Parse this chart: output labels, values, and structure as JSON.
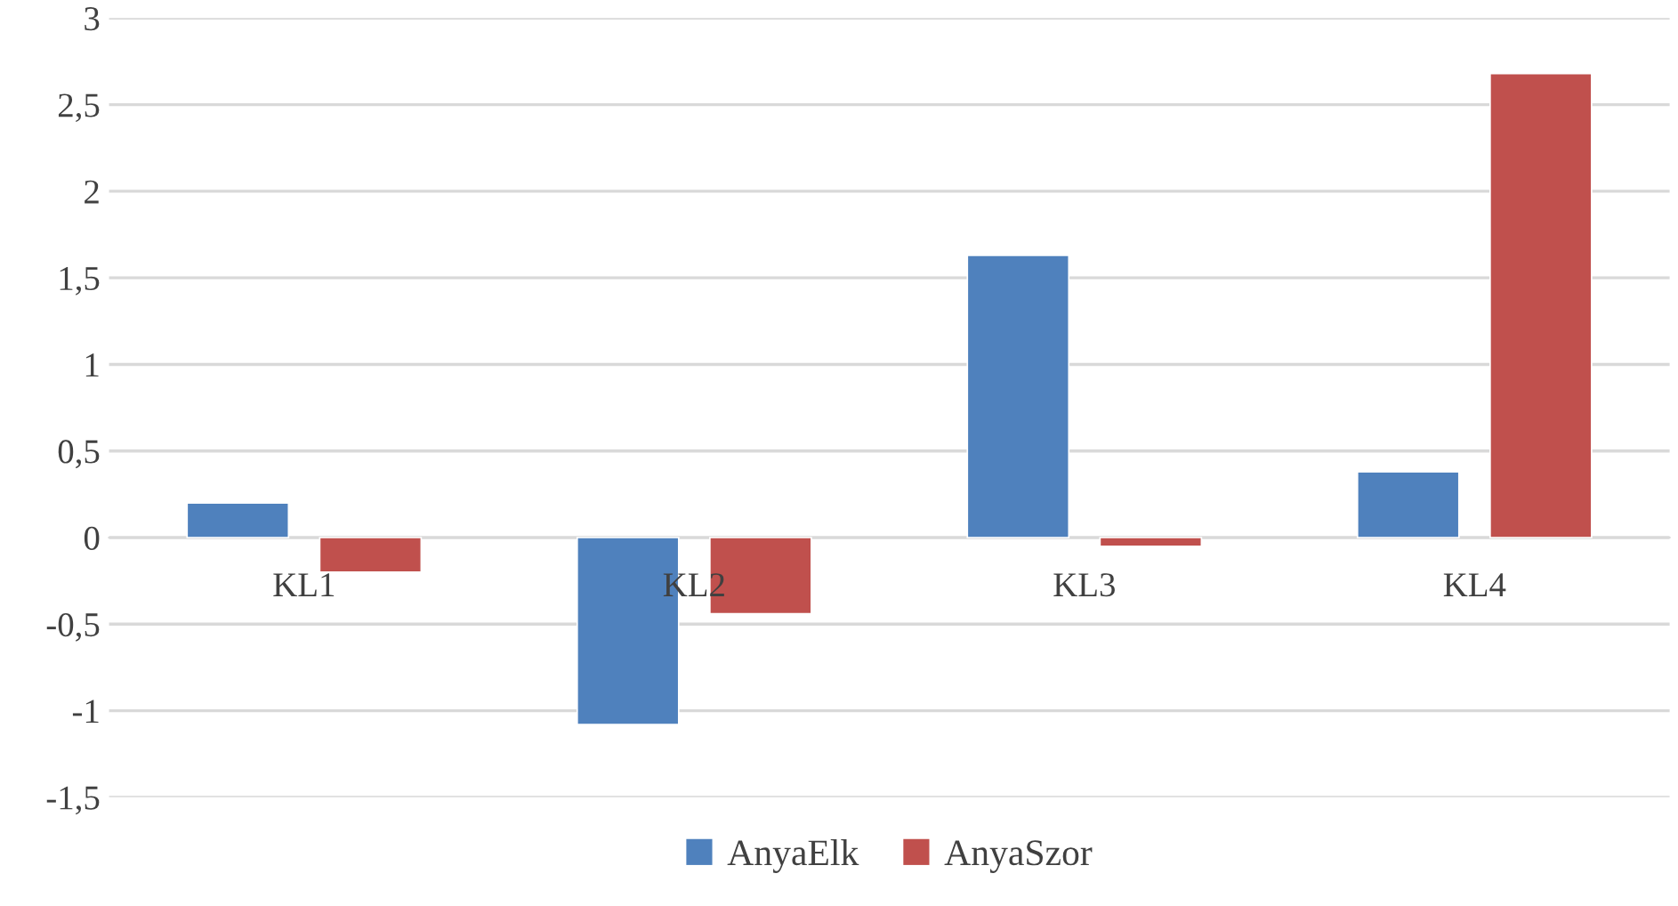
{
  "chart_data": {
    "type": "bar",
    "categories": [
      "KL1",
      "KL2",
      "KL3",
      "KL4"
    ],
    "series": [
      {
        "name": "AnyaElk",
        "color": "#4f81bd",
        "values": [
          0.2,
          -1.08,
          1.63,
          0.38
        ]
      },
      {
        "name": "AnyaSzor",
        "color": "#c0504d",
        "values": [
          -0.2,
          -0.44,
          -0.05,
          2.68
        ]
      }
    ],
    "ylim": [
      -1.5,
      3
    ],
    "yticks": [
      {
        "value": -1.5,
        "label": "-1,5"
      },
      {
        "value": -1,
        "label": "-1"
      },
      {
        "value": -0.5,
        "label": "-0,5"
      },
      {
        "value": 0,
        "label": "0"
      },
      {
        "value": 0.5,
        "label": "0,5"
      },
      {
        "value": 1,
        "label": "1"
      },
      {
        "value": 1.5,
        "label": "1,5"
      },
      {
        "value": 2,
        "label": "2"
      },
      {
        "value": 2.5,
        "label": "2,5"
      },
      {
        "value": 3,
        "label": "3"
      }
    ],
    "grid": "y",
    "legend": "bottom"
  }
}
